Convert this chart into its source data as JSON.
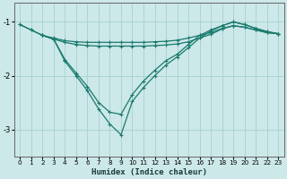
{
  "xlabel": "Humidex (Indice chaleur)",
  "bg_color": "#cce8e8",
  "grid_color": "#aad4d4",
  "line_color": "#1a7a6e",
  "xlim": [
    -0.5,
    23.5
  ],
  "ylim": [
    -3.5,
    -0.65
  ],
  "yticks": [
    -3,
    -2,
    -1
  ],
  "xticks": [
    0,
    1,
    2,
    3,
    4,
    5,
    6,
    7,
    8,
    9,
    10,
    11,
    12,
    13,
    14,
    15,
    16,
    17,
    18,
    19,
    20,
    21,
    22,
    23
  ],
  "line1_x": [
    0,
    1,
    2,
    3,
    4,
    5,
    6,
    7,
    8,
    9,
    10,
    11,
    12,
    13,
    14,
    15,
    16,
    17,
    18,
    19,
    20,
    21,
    22,
    23
  ],
  "line1_y": [
    -1.05,
    -1.15,
    -1.25,
    -1.3,
    -1.35,
    -1.37,
    -1.38,
    -1.38,
    -1.38,
    -1.38,
    -1.38,
    -1.38,
    -1.37,
    -1.36,
    -1.34,
    -1.3,
    -1.25,
    -1.2,
    -1.12,
    -1.07,
    -1.1,
    -1.15,
    -1.2,
    -1.22
  ],
  "line2_x": [
    0,
    1,
    2,
    3,
    4,
    5,
    6,
    7,
    8,
    9,
    10,
    11,
    12,
    13,
    14,
    15,
    16,
    17,
    18,
    19,
    20,
    21,
    22,
    23
  ],
  "line2_y": [
    -1.05,
    -1.15,
    -1.25,
    -1.32,
    -1.38,
    -1.42,
    -1.44,
    -1.45,
    -1.45,
    -1.45,
    -1.45,
    -1.45,
    -1.44,
    -1.43,
    -1.41,
    -1.37,
    -1.3,
    -1.23,
    -1.13,
    -1.07,
    -1.1,
    -1.15,
    -1.2,
    -1.22
  ],
  "line3_x": [
    2,
    3,
    4,
    5,
    6,
    7,
    8,
    9,
    10,
    11,
    12,
    13,
    14,
    15,
    16,
    17,
    18,
    19,
    20,
    21,
    22,
    23
  ],
  "line3_y": [
    -1.25,
    -1.32,
    -1.7,
    -1.95,
    -2.2,
    -2.5,
    -2.68,
    -2.72,
    -2.35,
    -2.1,
    -1.9,
    -1.72,
    -1.6,
    -1.42,
    -1.25,
    -1.15,
    -1.07,
    -1.0,
    -1.05,
    -1.12,
    -1.18,
    -1.22
  ],
  "line4_x": [
    2,
    3,
    4,
    5,
    6,
    7,
    8,
    9,
    10,
    11,
    12,
    13,
    14,
    15,
    16,
    17,
    18,
    19,
    20,
    21,
    22,
    23
  ],
  "line4_y": [
    -1.25,
    -1.32,
    -1.73,
    -2.0,
    -2.28,
    -2.62,
    -2.9,
    -3.1,
    -2.48,
    -2.22,
    -2.0,
    -1.8,
    -1.65,
    -1.48,
    -1.3,
    -1.17,
    -1.07,
    -1.0,
    -1.05,
    -1.12,
    -1.18,
    -1.22
  ]
}
